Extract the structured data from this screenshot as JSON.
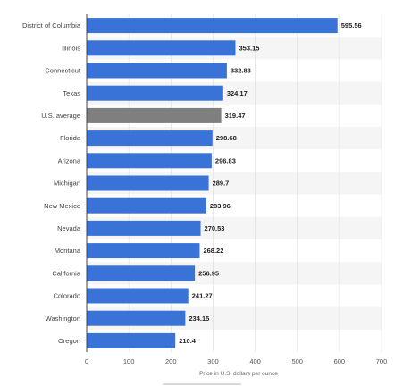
{
  "chart_data": {
    "type": "bar",
    "orientation": "horizontal",
    "categories": [
      "District of Columbia",
      "Illinois",
      "Connecticut",
      "Texas",
      "U.S. average",
      "Florida",
      "Arizona",
      "Michigan",
      "New Mexico",
      "Nevada",
      "Montana",
      "California",
      "Colorado",
      "Washington",
      "Oregon"
    ],
    "values": [
      595.56,
      353.15,
      332.83,
      324.17,
      319.47,
      298.68,
      296.83,
      289.7,
      283.96,
      270.53,
      268.22,
      256.95,
      241.27,
      234.15,
      210.4
    ],
    "value_labels": [
      "595.56",
      "353.15",
      "332.83",
      "324.17",
      "319.47",
      "298.68",
      "296.83",
      "289.7",
      "283.96",
      "270.53",
      "268.22",
      "256.95",
      "241.27",
      "234.15",
      "210.4"
    ],
    "highlight_index": 4,
    "xlabel": "Price in U.S. dollars per ounce",
    "xlim": [
      0,
      700
    ],
    "x_ticks": [
      0,
      100,
      200,
      300,
      400,
      500,
      600,
      700
    ],
    "grid": true,
    "colors": {
      "bar": "#3a73d8",
      "highlight": "#7f7f7f",
      "stripe": "#f5f5f5",
      "grid": "#dddddd"
    }
  }
}
